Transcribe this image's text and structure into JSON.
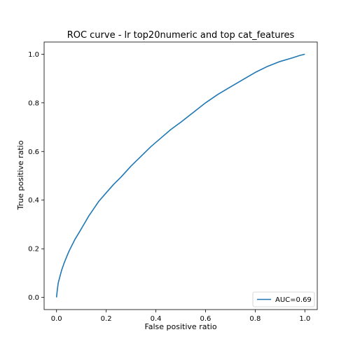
{
  "chart_data": {
    "type": "line",
    "title": "ROC curve - lr top20numeric and top cat_features",
    "xlabel": "False positive ratio",
    "ylabel": "True positive ratio",
    "xlim": [
      -0.05,
      1.05
    ],
    "ylim": [
      -0.05,
      1.05
    ],
    "xticks": [
      0.0,
      0.2,
      0.4,
      0.6,
      0.8,
      1.0
    ],
    "yticks": [
      0.0,
      0.2,
      0.4,
      0.6,
      0.8,
      1.0
    ],
    "xtick_labels": [
      "0.0",
      "0.2",
      "0.4",
      "0.6",
      "0.8",
      "1.0"
    ],
    "ytick_labels": [
      "0.0",
      "0.2",
      "0.4",
      "0.6",
      "0.8",
      "1.0"
    ],
    "grid": false,
    "legend_position": "lower-right",
    "series": [
      {
        "name": "AUC=0.69",
        "color": "#1f77b4",
        "x": [
          0.0,
          0.003,
          0.007,
          0.012,
          0.02,
          0.03,
          0.04,
          0.05,
          0.06,
          0.075,
          0.09,
          0.11,
          0.13,
          0.15,
          0.17,
          0.2,
          0.23,
          0.26,
          0.3,
          0.34,
          0.38,
          0.42,
          0.46,
          0.5,
          0.55,
          0.6,
          0.65,
          0.7,
          0.75,
          0.8,
          0.85,
          0.9,
          0.95,
          0.98,
          1.0
        ],
        "y": [
          0.0,
          0.03,
          0.06,
          0.08,
          0.11,
          0.14,
          0.165,
          0.19,
          0.21,
          0.24,
          0.265,
          0.3,
          0.335,
          0.365,
          0.395,
          0.43,
          0.465,
          0.495,
          0.54,
          0.58,
          0.62,
          0.655,
          0.69,
          0.72,
          0.76,
          0.8,
          0.835,
          0.865,
          0.895,
          0.925,
          0.95,
          0.97,
          0.985,
          0.995,
          1.0
        ]
      }
    ]
  }
}
